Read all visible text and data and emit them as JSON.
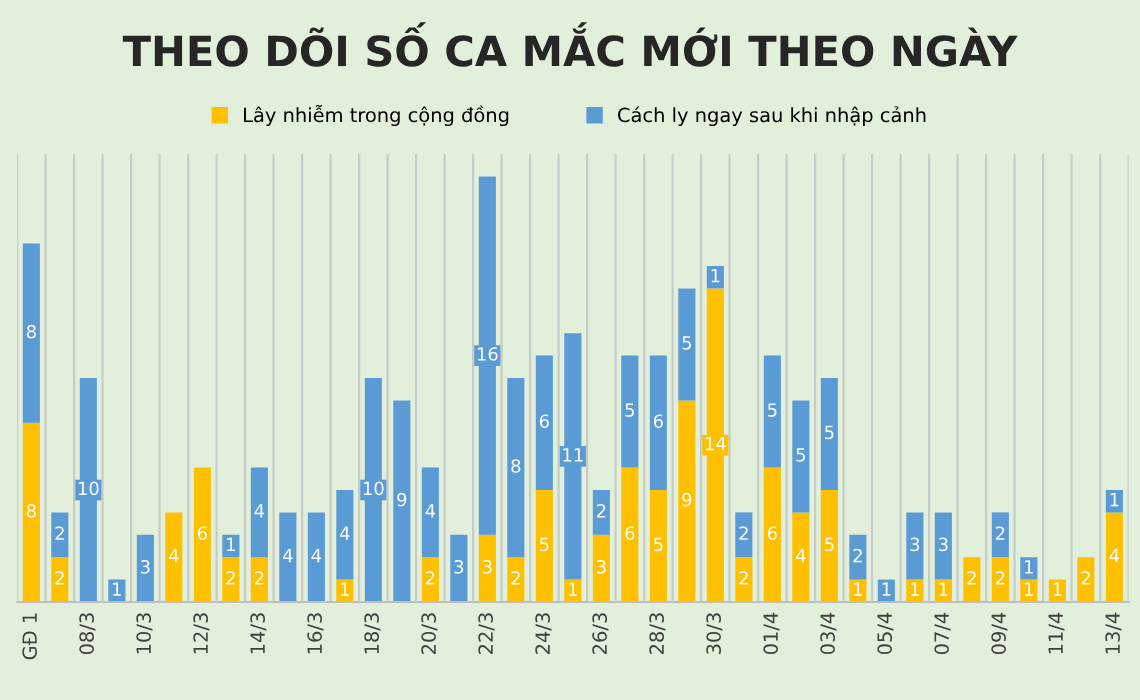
{
  "chart_data": {
    "type": "bar",
    "title": "THEO DÕI SỐ CA MẮC MỚI THEO NGÀY",
    "stacked": true,
    "data_labels": true,
    "legend": "top",
    "grid": "x",
    "ylim": [
      0,
      20
    ],
    "categories": [
      "GĐ 1",
      null,
      "08/3",
      null,
      "10/3",
      null,
      "12/3",
      null,
      "14/3",
      null,
      "16/3",
      null,
      "18/3",
      null,
      "20/3",
      null,
      "22/3",
      null,
      "24/3",
      null,
      "26/3",
      null,
      "28/3",
      null,
      "30/3",
      null,
      "01/4",
      null,
      "03/4",
      null,
      "05/4",
      null,
      "07/4",
      null,
      "09/4",
      null,
      "11/4",
      null,
      "13/4"
    ],
    "series": [
      {
        "name": "Lây nhiễm trong cộng đồng",
        "color": "#ffc000",
        "values": [
          8,
          2,
          null,
          null,
          null,
          4,
          6,
          2,
          2,
          null,
          null,
          1,
          null,
          null,
          2,
          null,
          3,
          2,
          5,
          1,
          3,
          6,
          5,
          9,
          14,
          2,
          6,
          4,
          5,
          1,
          null,
          1,
          1,
          2,
          2,
          1,
          1,
          2,
          4
        ]
      },
      {
        "name": "Cách ly ngay sau khi nhập cảnh",
        "color": "#5b9bd5",
        "values": [
          8,
          2,
          10,
          1,
          3,
          null,
          null,
          1,
          4,
          4,
          4,
          4,
          10,
          9,
          4,
          3,
          16,
          8,
          6,
          11,
          2,
          5,
          6,
          5,
          1,
          2,
          5,
          5,
          5,
          2,
          1,
          3,
          3,
          null,
          2,
          1,
          null,
          null,
          1
        ]
      }
    ]
  }
}
